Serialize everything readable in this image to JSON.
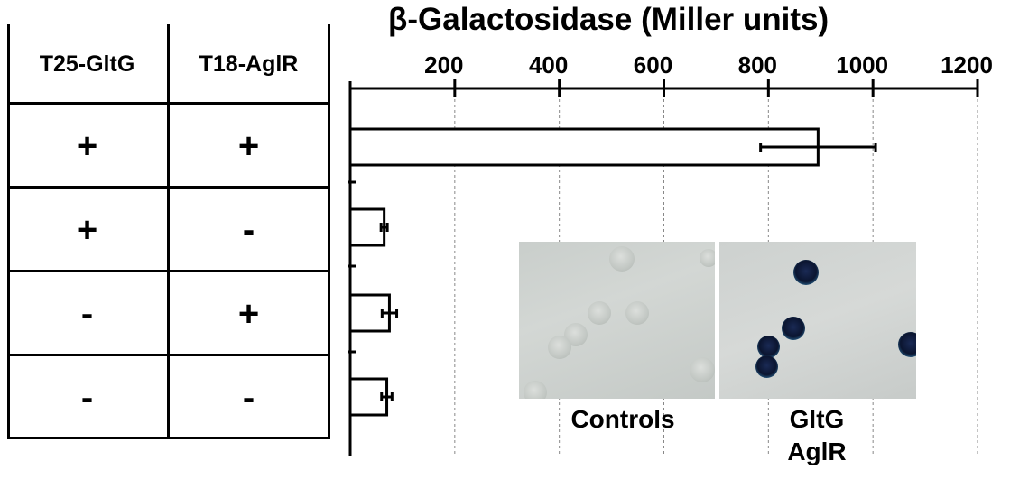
{
  "table": {
    "headers": [
      "T25-GltG",
      "T18-AglR"
    ],
    "rows": [
      [
        "+",
        "+"
      ],
      [
        "+",
        "-"
      ],
      [
        "-",
        "+"
      ],
      [
        "-",
        "-"
      ]
    ]
  },
  "chart_data": {
    "type": "bar",
    "orientation": "horizontal",
    "title": "β-Galactosidase (Miller units)",
    "axis_position": "top",
    "xlim": [
      0,
      1200
    ],
    "ticks": [
      200,
      400,
      600,
      800,
      1000,
      1200
    ],
    "tick_labels": [
      "200",
      "400",
      "600",
      "800",
      "1000",
      "1200"
    ],
    "grid": "vertical dashed",
    "categories": [
      "+/+",
      "+/-",
      "-/+",
      "-/-"
    ],
    "values": [
      895,
      65,
      75,
      70
    ],
    "errors": [
      110,
      6,
      14,
      10
    ],
    "bar_color": "#ffffff",
    "edge_color": "#000000"
  },
  "insets": {
    "controls_label": "Controls",
    "test_label_line1": "GltG",
    "test_label_line2": "AglR"
  }
}
